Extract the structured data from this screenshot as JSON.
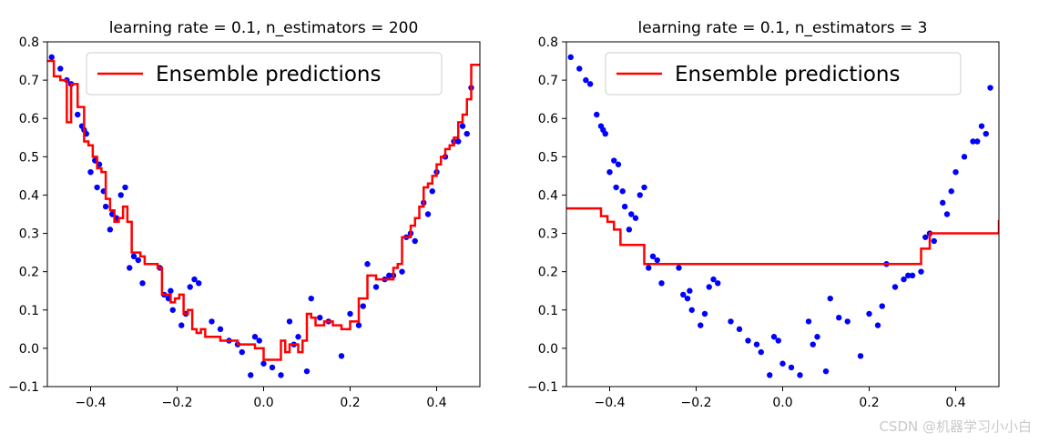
{
  "watermark": "CSDN @机器学习小小白",
  "colors": {
    "points": "#0000ff",
    "prediction": "#ff0000",
    "axis": "#000000"
  },
  "chart_data": [
    {
      "type": "scatter",
      "title": "learning rate = 0.1, n_estimators = 200",
      "xlabel": "",
      "ylabel": "",
      "xlim": [
        -0.5,
        0.5
      ],
      "ylim": [
        -0.1,
        0.8
      ],
      "xticks": [
        -0.4,
        -0.2,
        0.0,
        0.2,
        0.4
      ],
      "xtick_labels": [
        "−0.4",
        "−0.2",
        "0.0",
        "0.2",
        "0.4"
      ],
      "yticks": [
        -0.1,
        0.0,
        0.1,
        0.2,
        0.3,
        0.4,
        0.5,
        0.6,
        0.7,
        0.8
      ],
      "ytick_labels": [
        "−0.1",
        "0.0",
        "0.1",
        "0.2",
        "0.3",
        "0.4",
        "0.5",
        "0.6",
        "0.7",
        "0.8"
      ],
      "legend": {
        "placement": "top-right",
        "entries": [
          "Ensemble predictions"
        ]
      },
      "points": {
        "x": [
          -0.49,
          -0.47,
          -0.455,
          -0.445,
          -0.43,
          -0.42,
          -0.415,
          -0.41,
          -0.4,
          -0.39,
          -0.385,
          -0.38,
          -0.37,
          -0.365,
          -0.355,
          -0.35,
          -0.34,
          -0.33,
          -0.32,
          -0.31,
          -0.3,
          -0.29,
          -0.28,
          -0.24,
          -0.23,
          -0.22,
          -0.215,
          -0.21,
          -0.19,
          -0.18,
          -0.17,
          -0.16,
          -0.15,
          -0.12,
          -0.1,
          -0.08,
          -0.06,
          -0.05,
          -0.03,
          -0.02,
          -0.01,
          0.0,
          0.02,
          0.04,
          0.06,
          0.07,
          0.08,
          0.1,
          0.11,
          0.13,
          0.15,
          0.18,
          0.2,
          0.22,
          0.23,
          0.24,
          0.26,
          0.28,
          0.29,
          0.3,
          0.32,
          0.33,
          0.34,
          0.35,
          0.37,
          0.38,
          0.39,
          0.4,
          0.42,
          0.44,
          0.45,
          0.46,
          0.47,
          0.48
        ],
        "y": [
          0.76,
          0.73,
          0.7,
          0.69,
          0.61,
          0.58,
          0.57,
          0.56,
          0.46,
          0.49,
          0.42,
          0.48,
          0.41,
          0.37,
          0.31,
          0.35,
          0.34,
          0.4,
          0.42,
          0.21,
          0.24,
          0.23,
          0.17,
          0.21,
          0.14,
          0.13,
          0.15,
          0.1,
          0.06,
          0.09,
          0.16,
          0.18,
          0.17,
          0.07,
          0.05,
          0.02,
          0.01,
          -0.01,
          -0.07,
          0.03,
          0.02,
          -0.04,
          -0.05,
          -0.07,
          0.07,
          0.01,
          0.03,
          -0.06,
          0.13,
          0.08,
          0.07,
          -0.02,
          0.09,
          0.06,
          0.11,
          0.22,
          0.16,
          0.18,
          0.19,
          0.19,
          0.2,
          0.29,
          0.3,
          0.28,
          0.38,
          0.35,
          0.41,
          0.46,
          0.5,
          0.54,
          0.54,
          0.58,
          0.56,
          0.68
        ]
      },
      "series": [
        {
          "name": "Ensemble predictions",
          "x": [
            -0.5,
            -0.485,
            -0.47,
            -0.455,
            -0.445,
            -0.43,
            -0.425,
            -0.415,
            -0.405,
            -0.395,
            -0.385,
            -0.375,
            -0.365,
            -0.355,
            -0.345,
            -0.335,
            -0.325,
            -0.315,
            -0.305,
            -0.295,
            -0.285,
            -0.275,
            -0.26,
            -0.245,
            -0.235,
            -0.225,
            -0.215,
            -0.205,
            -0.195,
            -0.185,
            -0.175,
            -0.165,
            -0.155,
            -0.145,
            -0.135,
            -0.12,
            -0.1,
            -0.08,
            -0.06,
            -0.04,
            -0.02,
            0.0,
            0.02,
            0.04,
            0.05,
            0.06,
            0.07,
            0.08,
            0.09,
            0.1,
            0.11,
            0.12,
            0.14,
            0.16,
            0.18,
            0.2,
            0.22,
            0.24,
            0.26,
            0.28,
            0.29,
            0.3,
            0.31,
            0.32,
            0.33,
            0.34,
            0.35,
            0.36,
            0.37,
            0.38,
            0.39,
            0.4,
            0.41,
            0.42,
            0.43,
            0.44,
            0.45,
            0.46,
            0.47,
            0.48,
            0.5
          ],
          "y": [
            0.75,
            0.71,
            0.7,
            0.59,
            0.69,
            0.63,
            0.63,
            0.54,
            0.53,
            0.5,
            0.47,
            0.46,
            0.39,
            0.36,
            0.33,
            0.34,
            0.37,
            0.33,
            0.25,
            0.25,
            0.24,
            0.22,
            0.22,
            0.21,
            0.14,
            0.14,
            0.12,
            0.13,
            0.14,
            0.09,
            0.1,
            0.05,
            0.04,
            0.05,
            0.03,
            0.03,
            0.02,
            0.02,
            0.01,
            0.01,
            0.0,
            -0.03,
            -0.03,
            0.02,
            -0.01,
            0.01,
            0.01,
            -0.01,
            0.02,
            0.09,
            0.08,
            0.06,
            0.07,
            0.06,
            0.05,
            0.07,
            0.13,
            0.19,
            0.18,
            0.18,
            0.18,
            0.21,
            0.22,
            0.29,
            0.29,
            0.32,
            0.34,
            0.37,
            0.42,
            0.43,
            0.45,
            0.48,
            0.5,
            0.52,
            0.53,
            0.55,
            0.59,
            0.61,
            0.65,
            0.74,
            0.74
          ]
        }
      ]
    },
    {
      "type": "scatter",
      "title": "learning rate = 0.1, n_estimators = 3",
      "xlabel": "",
      "ylabel": "",
      "xlim": [
        -0.5,
        0.5
      ],
      "ylim": [
        -0.1,
        0.8
      ],
      "xticks": [
        -0.4,
        -0.2,
        0.0,
        0.2,
        0.4
      ],
      "xtick_labels": [
        "−0.4",
        "−0.2",
        "0.0",
        "0.2",
        "0.4"
      ],
      "yticks": [
        -0.1,
        0.0,
        0.1,
        0.2,
        0.3,
        0.4,
        0.5,
        0.6,
        0.7,
        0.8
      ],
      "ytick_labels": [
        "−0.1",
        "0.0",
        "0.1",
        "0.2",
        "0.3",
        "0.4",
        "0.5",
        "0.6",
        "0.7",
        "0.8"
      ],
      "legend": {
        "placement": "top-right",
        "entries": [
          "Ensemble predictions"
        ]
      },
      "points": {
        "x": [
          -0.49,
          -0.47,
          -0.455,
          -0.445,
          -0.43,
          -0.42,
          -0.415,
          -0.41,
          -0.4,
          -0.39,
          -0.385,
          -0.38,
          -0.37,
          -0.365,
          -0.355,
          -0.35,
          -0.34,
          -0.33,
          -0.32,
          -0.31,
          -0.3,
          -0.29,
          -0.28,
          -0.24,
          -0.23,
          -0.22,
          -0.215,
          -0.21,
          -0.19,
          -0.18,
          -0.17,
          -0.16,
          -0.15,
          -0.12,
          -0.1,
          -0.08,
          -0.06,
          -0.05,
          -0.03,
          -0.02,
          -0.01,
          0.0,
          0.02,
          0.04,
          0.06,
          0.07,
          0.08,
          0.1,
          0.11,
          0.13,
          0.15,
          0.18,
          0.2,
          0.22,
          0.23,
          0.24,
          0.26,
          0.28,
          0.29,
          0.3,
          0.32,
          0.33,
          0.34,
          0.35,
          0.37,
          0.38,
          0.39,
          0.4,
          0.42,
          0.44,
          0.45,
          0.46,
          0.47,
          0.48
        ],
        "y": [
          0.76,
          0.73,
          0.7,
          0.69,
          0.61,
          0.58,
          0.57,
          0.56,
          0.46,
          0.49,
          0.42,
          0.48,
          0.41,
          0.37,
          0.31,
          0.35,
          0.34,
          0.4,
          0.42,
          0.21,
          0.24,
          0.23,
          0.17,
          0.21,
          0.14,
          0.13,
          0.15,
          0.1,
          0.06,
          0.09,
          0.16,
          0.18,
          0.17,
          0.07,
          0.05,
          0.02,
          0.01,
          -0.01,
          -0.07,
          0.03,
          0.02,
          -0.04,
          -0.05,
          -0.07,
          0.07,
          0.01,
          0.03,
          -0.06,
          0.13,
          0.08,
          0.07,
          -0.02,
          0.09,
          0.06,
          0.11,
          0.22,
          0.16,
          0.18,
          0.19,
          0.19,
          0.2,
          0.29,
          0.3,
          0.28,
          0.38,
          0.35,
          0.41,
          0.46,
          0.5,
          0.54,
          0.54,
          0.58,
          0.56,
          0.68
        ]
      },
      "series": [
        {
          "name": "Ensemble predictions",
          "x": [
            -0.5,
            -0.435,
            -0.42,
            -0.405,
            -0.39,
            -0.375,
            -0.33,
            -0.32,
            0.29,
            0.32,
            0.34,
            0.5
          ],
          "y": [
            0.365,
            0.365,
            0.345,
            0.33,
            0.31,
            0.27,
            0.27,
            0.22,
            0.22,
            0.26,
            0.3,
            0.335
          ]
        }
      ]
    }
  ]
}
